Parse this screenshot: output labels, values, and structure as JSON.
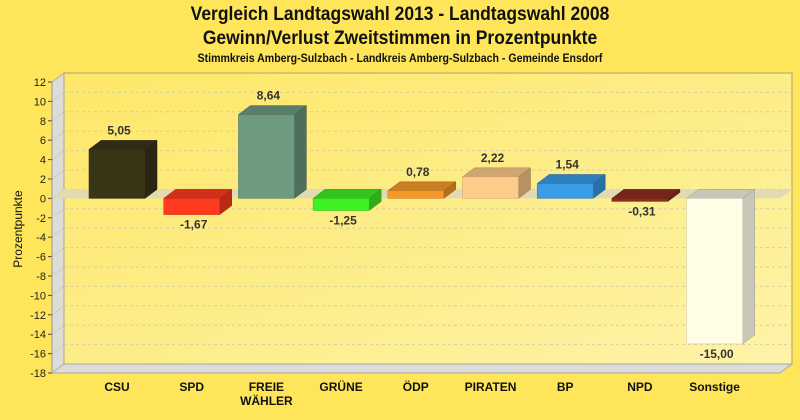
{
  "chart_data": {
    "type": "bar",
    "title": "Vergleich Landtagswahl 2013 - Landtagswahl 2008",
    "subtitle": "Gewinn/Verlust Zweitstimmen in Prozentpunkte",
    "subtitle2": "Stimmkreis Amberg-Sulzbach - Landkreis Amberg-Sulzbach - Gemeinde Ensdorf",
    "xlabel": "",
    "ylabel": "Prozentpunkte",
    "ylim": [
      -18,
      12
    ],
    "yticks": [
      12,
      10,
      8,
      6,
      4,
      2,
      0,
      -2,
      -4,
      -6,
      -8,
      -10,
      -12,
      -14,
      -16,
      -18
    ],
    "grid": true,
    "categories": [
      "CSU",
      "SPD",
      "FREIE WÄHLER",
      "GRÜNE",
      "ÖDP",
      "PIRATEN",
      "BP",
      "NPD",
      "Sonstige"
    ],
    "category_lines": [
      [
        "CSU"
      ],
      [
        "SPD"
      ],
      [
        "FREIE",
        "WÄHLER"
      ],
      [
        "GRÜNE"
      ],
      [
        "ÖDP"
      ],
      [
        "PIRATEN"
      ],
      [
        "BP"
      ],
      [
        "NPD"
      ],
      [
        "Sonstige"
      ]
    ],
    "values": [
      5.05,
      -1.67,
      8.64,
      -1.25,
      0.78,
      2.22,
      1.54,
      -0.31,
      -15.0
    ],
    "value_labels": [
      "5,05",
      "-1,67",
      "8,64",
      "-1,25",
      "0,78",
      "2,22",
      "1,54",
      "-0,31",
      "-15,00"
    ],
    "colors": [
      "#3B3518",
      "#FF3A1E",
      "#6E9A80",
      "#3FF022",
      "#F59A2A",
      "#FDCB8A",
      "#3A9BE6",
      "#8C2E1E",
      "#FFFDE6"
    ]
  }
}
